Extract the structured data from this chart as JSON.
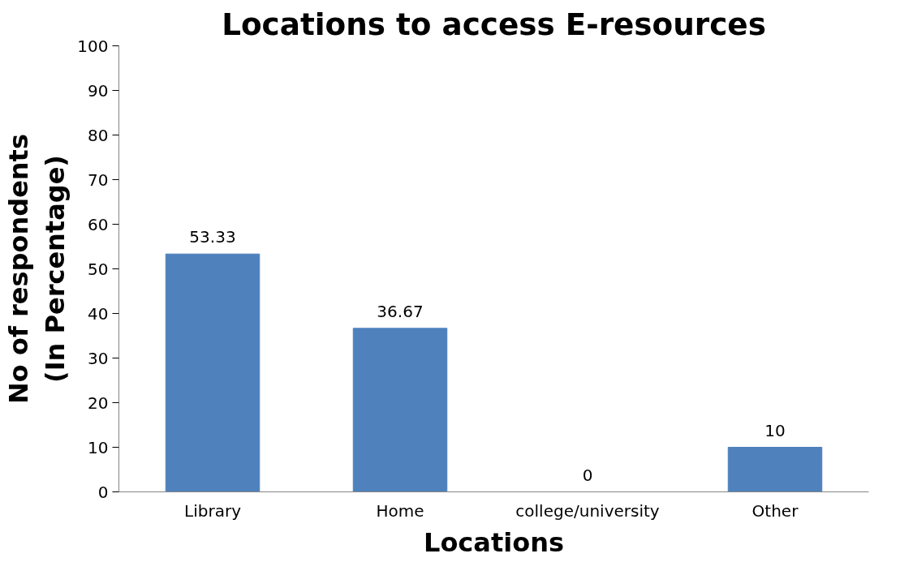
{
  "chart_data": {
    "type": "bar",
    "title": "Locations to access E-resources",
    "xlabel": "Locations",
    "ylabel": "No of respondents\n(In Percentage)",
    "categories": [
      "Library",
      "Home",
      "college/university",
      "Other"
    ],
    "values": [
      53.33,
      36.67,
      0,
      10
    ],
    "color": "#4f81bd",
    "ylim": [
      0,
      100
    ],
    "yticks": [
      0,
      10,
      20,
      30,
      40,
      50,
      60,
      70,
      80,
      90,
      100
    ],
    "data_labels": true,
    "grid": false
  }
}
